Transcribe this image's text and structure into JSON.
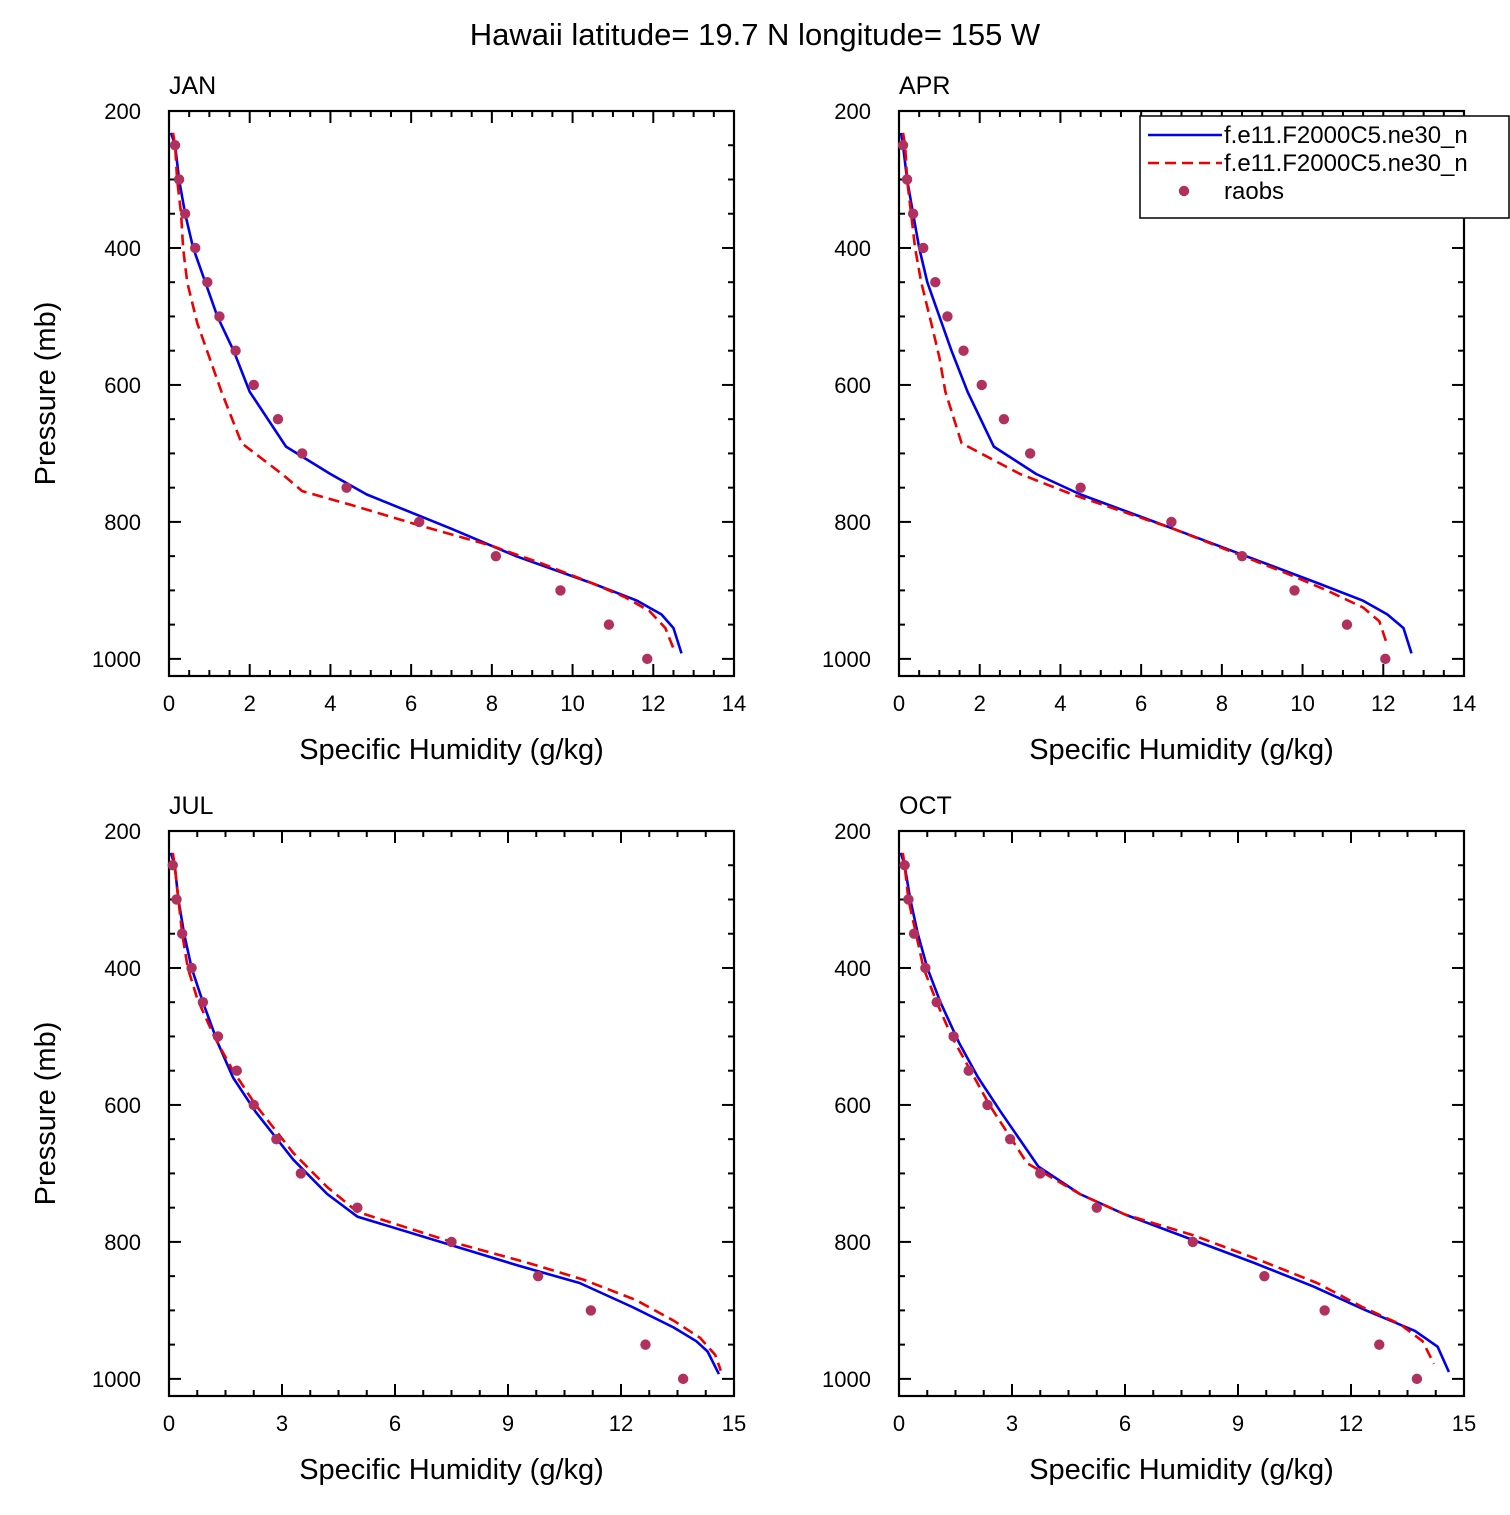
{
  "title": "Hawaii  latitude= 19.7 N longitude= 155 W",
  "legend": {
    "placement": "top-right",
    "entries": [
      {
        "label": "f.e11.F2000C5.ne30_n",
        "color": "#0000ee",
        "style": "solid"
      },
      {
        "label": "f.e11.F2000C5.ne30_n",
        "color": "#ee0000",
        "style": "dashed"
      },
      {
        "label": "raobs",
        "color": "#b0305e",
        "style": "marker"
      }
    ]
  },
  "chart_data": [
    {
      "type": "line",
      "panel_label": "JAN",
      "xlabel": "Specific Humidity (g/kg)",
      "ylabel": "Pressure (mb)",
      "xlim": [
        0,
        14
      ],
      "ylim": [
        1025,
        200
      ],
      "y_inverted": true,
      "xticks": [
        "0",
        "2",
        "4",
        "6",
        "8",
        "10",
        "12",
        "14"
      ],
      "yticks": [
        "200",
        "400",
        "600",
        "800",
        "1000"
      ],
      "series": [
        {
          "style": "solid",
          "color": "#0000ee",
          "points": [
            [
              0.05,
              232
            ],
            [
              0.15,
              250
            ],
            [
              0.25,
              300
            ],
            [
              0.4,
              350
            ],
            [
              0.6,
              400
            ],
            [
              0.9,
              450
            ],
            [
              1.2,
              500
            ],
            [
              1.6,
              550
            ],
            [
              2.0,
              610
            ],
            [
              2.9,
              690
            ],
            [
              4.0,
              730
            ],
            [
              4.9,
              760
            ],
            [
              7.0,
              810
            ],
            [
              8.6,
              850
            ],
            [
              10.5,
              890
            ],
            [
              11.6,
              915
            ],
            [
              12.2,
              935
            ],
            [
              12.5,
              955
            ],
            [
              12.7,
              992
            ]
          ]
        },
        {
          "style": "dashed",
          "color": "#ee0000",
          "points": [
            [
              0.1,
              232
            ],
            [
              0.15,
              250
            ],
            [
              0.2,
              300
            ],
            [
              0.3,
              350
            ],
            [
              0.35,
              400
            ],
            [
              0.45,
              450
            ],
            [
              0.7,
              510
            ],
            [
              1.0,
              560
            ],
            [
              1.3,
              610
            ],
            [
              1.8,
              685
            ],
            [
              2.8,
              730
            ],
            [
              3.3,
              755
            ],
            [
              4.5,
              775
            ],
            [
              6.2,
              805
            ],
            [
              8.0,
              835
            ],
            [
              9.2,
              860
            ],
            [
              10.5,
              890
            ],
            [
              11.3,
              910
            ],
            [
              11.9,
              930
            ],
            [
              12.3,
              955
            ],
            [
              12.5,
              985
            ]
          ]
        },
        {
          "style": "marker",
          "color": "#b0305e",
          "points": [
            [
              0.15,
              250
            ],
            [
              0.25,
              300
            ],
            [
              0.4,
              350
            ],
            [
              0.65,
              400
            ],
            [
              0.95,
              450
            ],
            [
              1.25,
              500
            ],
            [
              1.65,
              550
            ],
            [
              2.1,
              600
            ],
            [
              2.7,
              650
            ],
            [
              3.3,
              700
            ],
            [
              4.4,
              750
            ],
            [
              6.2,
              800
            ],
            [
              8.1,
              850
            ],
            [
              9.7,
              900
            ],
            [
              10.9,
              950
            ],
            [
              11.85,
              1000
            ]
          ]
        }
      ]
    },
    {
      "type": "line",
      "panel_label": "APR",
      "xlabel": "Specific Humidity (g/kg)",
      "ylabel": "",
      "xlim": [
        0,
        14
      ],
      "ylim": [
        1025,
        200
      ],
      "y_inverted": true,
      "xticks": [
        "0",
        "2",
        "4",
        "6",
        "8",
        "10",
        "12",
        "14"
      ],
      "yticks": [
        "200",
        "400",
        "600",
        "800",
        "1000"
      ],
      "series": [
        {
          "style": "solid",
          "color": "#0000ee",
          "points": [
            [
              0.05,
              232
            ],
            [
              0.1,
              250
            ],
            [
              0.2,
              300
            ],
            [
              0.35,
              350
            ],
            [
              0.5,
              400
            ],
            [
              0.7,
              450
            ],
            [
              1.0,
              500
            ],
            [
              1.3,
              550
            ],
            [
              1.7,
              610
            ],
            [
              2.35,
              690
            ],
            [
              3.4,
              730
            ],
            [
              4.5,
              760
            ],
            [
              6.8,
              810
            ],
            [
              8.6,
              850
            ],
            [
              10.4,
              890
            ],
            [
              11.5,
              915
            ],
            [
              12.1,
              935
            ],
            [
              12.5,
              955
            ],
            [
              12.7,
              992
            ]
          ]
        },
        {
          "style": "dashed",
          "color": "#ee0000",
          "points": [
            [
              0.1,
              232
            ],
            [
              0.15,
              250
            ],
            [
              0.2,
              300
            ],
            [
              0.3,
              350
            ],
            [
              0.4,
              400
            ],
            [
              0.55,
              450
            ],
            [
              0.8,
              510
            ],
            [
              1.0,
              560
            ],
            [
              1.15,
              610
            ],
            [
              1.55,
              685
            ],
            [
              3.0,
              730
            ],
            [
              4.3,
              760
            ],
            [
              6.8,
              810
            ],
            [
              8.3,
              845
            ],
            [
              9.6,
              875
            ],
            [
              10.6,
              900
            ],
            [
              11.5,
              925
            ],
            [
              11.9,
              945
            ],
            [
              12.1,
              980
            ]
          ]
        },
        {
          "style": "marker",
          "color": "#b0305e",
          "points": [
            [
              0.1,
              250
            ],
            [
              0.2,
              300
            ],
            [
              0.35,
              350
            ],
            [
              0.6,
              400
            ],
            [
              0.9,
              450
            ],
            [
              1.2,
              500
            ],
            [
              1.6,
              550
            ],
            [
              2.05,
              600
            ],
            [
              2.6,
              650
            ],
            [
              3.25,
              700
            ],
            [
              4.5,
              750
            ],
            [
              6.75,
              800
            ],
            [
              8.5,
              850
            ],
            [
              9.8,
              900
            ],
            [
              11.1,
              950
            ],
            [
              12.05,
              1000
            ]
          ]
        }
      ]
    },
    {
      "type": "line",
      "panel_label": "JUL",
      "xlabel": "Specific Humidity (g/kg)",
      "ylabel": "Pressure (mb)",
      "xlim": [
        0,
        15
      ],
      "ylim": [
        1025,
        200
      ],
      "y_inverted": true,
      "xticks": [
        "0",
        "3",
        "6",
        "9",
        "12",
        "15"
      ],
      "yticks": [
        "200",
        "400",
        "600",
        "800",
        "1000"
      ],
      "series": [
        {
          "style": "solid",
          "color": "#0000ee",
          "points": [
            [
              0.05,
              232
            ],
            [
              0.15,
              250
            ],
            [
              0.25,
              300
            ],
            [
              0.4,
              350
            ],
            [
              0.6,
              400
            ],
            [
              0.9,
              450
            ],
            [
              1.3,
              510
            ],
            [
              1.7,
              560
            ],
            [
              2.3,
              610
            ],
            [
              3.3,
              680
            ],
            [
              4.2,
              730
            ],
            [
              5.0,
              763
            ],
            [
              7.5,
              805
            ],
            [
              9.3,
              835
            ],
            [
              10.9,
              860
            ],
            [
              12.3,
              895
            ],
            [
              13.4,
              925
            ],
            [
              14.0,
              945
            ],
            [
              14.3,
              960
            ],
            [
              14.6,
              993
            ]
          ]
        },
        {
          "style": "dashed",
          "color": "#ee0000",
          "points": [
            [
              0.1,
              232
            ],
            [
              0.15,
              250
            ],
            [
              0.25,
              300
            ],
            [
              0.35,
              350
            ],
            [
              0.5,
              400
            ],
            [
              0.75,
              445
            ],
            [
              1.2,
              500
            ],
            [
              1.7,
              550
            ],
            [
              2.3,
              600
            ],
            [
              3.3,
              670
            ],
            [
              4.2,
              720
            ],
            [
              5.0,
              756
            ],
            [
              7.5,
              800
            ],
            [
              9.5,
              830
            ],
            [
              11.0,
              855
            ],
            [
              12.4,
              885
            ],
            [
              13.4,
              915
            ],
            [
              14.1,
              940
            ],
            [
              14.5,
              965
            ],
            [
              14.65,
              988
            ]
          ]
        },
        {
          "style": "marker",
          "color": "#b0305e",
          "points": [
            [
              0.1,
              250
            ],
            [
              0.2,
              300
            ],
            [
              0.35,
              350
            ],
            [
              0.6,
              400
            ],
            [
              0.9,
              450
            ],
            [
              1.3,
              500
            ],
            [
              1.8,
              550
            ],
            [
              2.25,
              600
            ],
            [
              2.85,
              650
            ],
            [
              3.5,
              700
            ],
            [
              5.0,
              750
            ],
            [
              7.5,
              800
            ],
            [
              9.8,
              850
            ],
            [
              11.2,
              900
            ],
            [
              12.65,
              950
            ],
            [
              13.65,
              1000
            ]
          ]
        }
      ]
    },
    {
      "type": "line",
      "panel_label": "OCT",
      "xlabel": "Specific Humidity (g/kg)",
      "ylabel": "",
      "xlim": [
        0,
        15
      ],
      "ylim": [
        1025,
        200
      ],
      "y_inverted": true,
      "xticks": [
        "0",
        "3",
        "6",
        "9",
        "12",
        "15"
      ],
      "yticks": [
        "200",
        "400",
        "600",
        "800",
        "1000"
      ],
      "series": [
        {
          "style": "solid",
          "color": "#0000ee",
          "points": [
            [
              0.05,
              232
            ],
            [
              0.15,
              250
            ],
            [
              0.3,
              300
            ],
            [
              0.5,
              350
            ],
            [
              0.75,
              400
            ],
            [
              1.1,
              450
            ],
            [
              1.6,
              510
            ],
            [
              2.1,
              560
            ],
            [
              2.7,
              610
            ],
            [
              3.7,
              690
            ],
            [
              4.8,
              730
            ],
            [
              6.0,
              760
            ],
            [
              7.7,
              795
            ],
            [
              9.4,
              830
            ],
            [
              11.0,
              865
            ],
            [
              12.4,
              900
            ],
            [
              13.7,
              930
            ],
            [
              14.3,
              953
            ],
            [
              14.6,
              990
            ]
          ]
        },
        {
          "style": "dashed",
          "color": "#ee0000",
          "points": [
            [
              0.1,
              232
            ],
            [
              0.15,
              250
            ],
            [
              0.25,
              300
            ],
            [
              0.45,
              350
            ],
            [
              0.65,
              400
            ],
            [
              1.0,
              450
            ],
            [
              1.4,
              500
            ],
            [
              1.9,
              550
            ],
            [
              2.4,
              600
            ],
            [
              3.4,
              685
            ],
            [
              4.8,
              730
            ],
            [
              6.0,
              760
            ],
            [
              7.8,
              790
            ],
            [
              9.5,
              825
            ],
            [
              11.1,
              860
            ],
            [
              12.3,
              895
            ],
            [
              13.3,
              920
            ],
            [
              13.9,
              945
            ],
            [
              14.2,
              978
            ]
          ]
        },
        {
          "style": "marker",
          "color": "#b0305e",
          "points": [
            [
              0.15,
              250
            ],
            [
              0.25,
              300
            ],
            [
              0.4,
              350
            ],
            [
              0.7,
              400
            ],
            [
              1.0,
              450
            ],
            [
              1.45,
              500
            ],
            [
              1.85,
              550
            ],
            [
              2.35,
              600
            ],
            [
              2.95,
              650
            ],
            [
              3.75,
              700
            ],
            [
              5.25,
              750
            ],
            [
              7.8,
              800
            ],
            [
              9.7,
              850
            ],
            [
              11.3,
              900
            ],
            [
              12.75,
              950
            ],
            [
              13.75,
              1000
            ]
          ]
        }
      ]
    }
  ]
}
